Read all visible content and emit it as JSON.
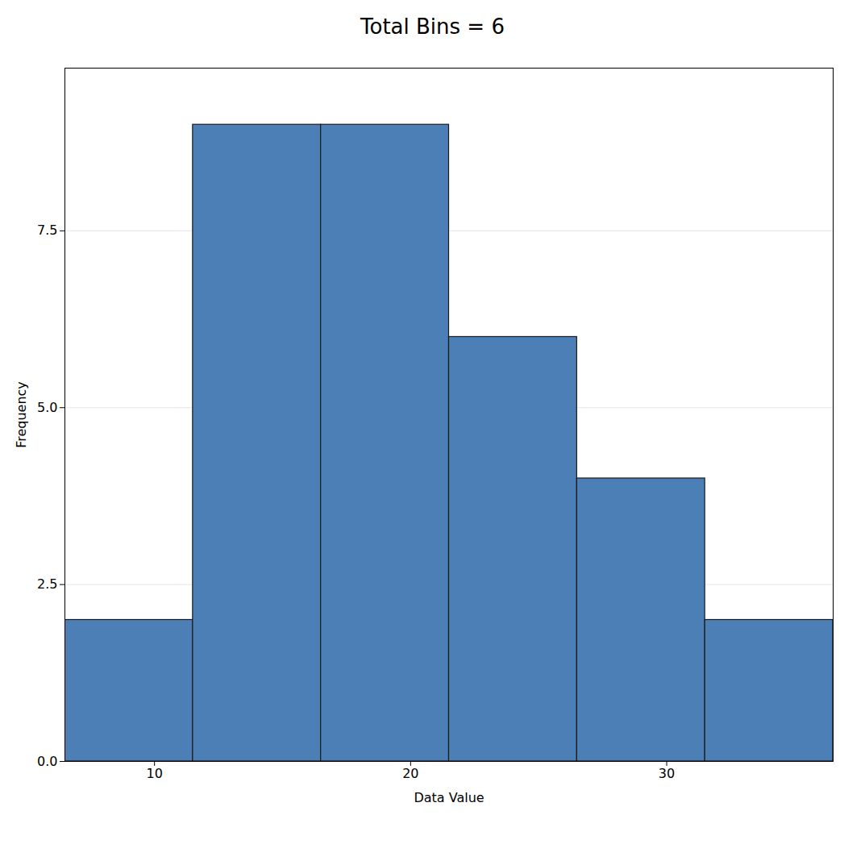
{
  "chart_data": {
    "type": "histogram",
    "title": "Total Bins = 6",
    "xlabel": "Data Value",
    "ylabel": "Frequency",
    "bins": [
      6.5,
      11.5,
      16.5,
      21.5,
      26.5,
      31.5,
      36.5
    ],
    "values": [
      2,
      9,
      9,
      6,
      4,
      2
    ],
    "color": "#4b7fb5",
    "xlim": [
      6.5,
      36.5
    ],
    "xticks": [
      10,
      20,
      30
    ],
    "ylim": [
      0,
      9.8
    ],
    "yticks": [
      {
        "value": 0.0,
        "label": "0.0"
      },
      2.5,
      {
        "value": 5.0,
        "label": "5.0"
      },
      7.5
    ],
    "grid": true
  }
}
